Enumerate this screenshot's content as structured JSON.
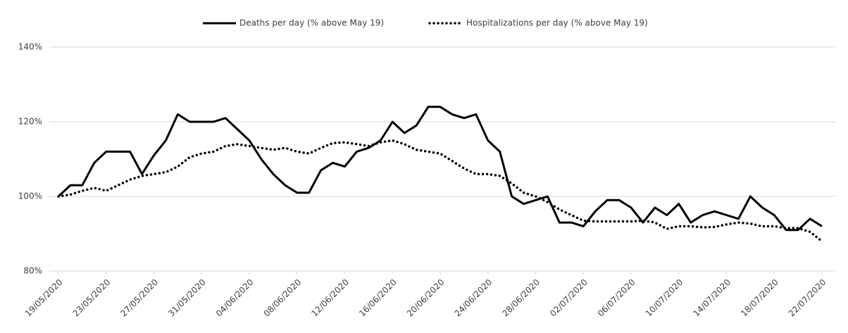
{
  "chart_data": {
    "type": "line",
    "categories": [
      "19/05/2020",
      null,
      null,
      null,
      "23/05/2020",
      null,
      null,
      null,
      "27/05/2020",
      null,
      null,
      null,
      "31/05/2020",
      null,
      null,
      null,
      "04/06/2020",
      null,
      null,
      null,
      "08/06/2020",
      null,
      null,
      null,
      "12/06/2020",
      null,
      null,
      null,
      "16/06/2020",
      null,
      null,
      null,
      "20/06/2020",
      null,
      null,
      null,
      "24/06/2020",
      null,
      null,
      null,
      "28/06/2020",
      null,
      null,
      null,
      "02/07/2020",
      null,
      null,
      null,
      "06/07/2020",
      null,
      null,
      null,
      "10/07/2020",
      null,
      null,
      null,
      "14/07/2020",
      null,
      null,
      null,
      "18/07/2020",
      null,
      null,
      null,
      "22/07/2020"
    ],
    "series": [
      {
        "name": "Deaths per day (% above May 19)",
        "color": "#000000",
        "style": "solid",
        "values": [
          100,
          103,
          103,
          109,
          112,
          112,
          112,
          106,
          111,
          115,
          122,
          120,
          120,
          120,
          121,
          118,
          115,
          110,
          106,
          103,
          101,
          101,
          107,
          109,
          108,
          112,
          113,
          115,
          120,
          117,
          119,
          124,
          124,
          122,
          121,
          122,
          115,
          112,
          100,
          98,
          99,
          100,
          93,
          93,
          92,
          96,
          99,
          99,
          97,
          93,
          97,
          95,
          98,
          93,
          95,
          96,
          95,
          94,
          100,
          97,
          95,
          91,
          91,
          94,
          92
        ]
      },
      {
        "name": "Hospitalizations per day (% above May 19)",
        "color": "#000000",
        "style": "dotted",
        "values": [
          100,
          100.5,
          101.5,
          102.3,
          101.5,
          103,
          104.5,
          105.5,
          106,
          106.5,
          108,
          110.5,
          111.5,
          112,
          113.5,
          114,
          113.5,
          113,
          112.5,
          113,
          112,
          111.5,
          113,
          114.3,
          114.5,
          114,
          113.5,
          114.5,
          115,
          114,
          112.5,
          112,
          111.5,
          109.5,
          107.5,
          106,
          106,
          105.5,
          103.5,
          101,
          100,
          98.5,
          96.5,
          95,
          93.5,
          93.3,
          93.3,
          93.3,
          93.3,
          93.5,
          93,
          91.3,
          92,
          92,
          91.7,
          91.8,
          92.5,
          93,
          92.7,
          92,
          92,
          91.5,
          91.5,
          90.5,
          88
        ]
      }
    ],
    "ylim": [
      80,
      140
    ],
    "yticks": [
      {
        "value": 80,
        "label": "80%"
      },
      {
        "value": 100,
        "label": "100%"
      },
      {
        "value": 120,
        "label": "120%"
      },
      {
        "value": 140,
        "label": "140%"
      }
    ],
    "grid": true,
    "legend": "top"
  }
}
